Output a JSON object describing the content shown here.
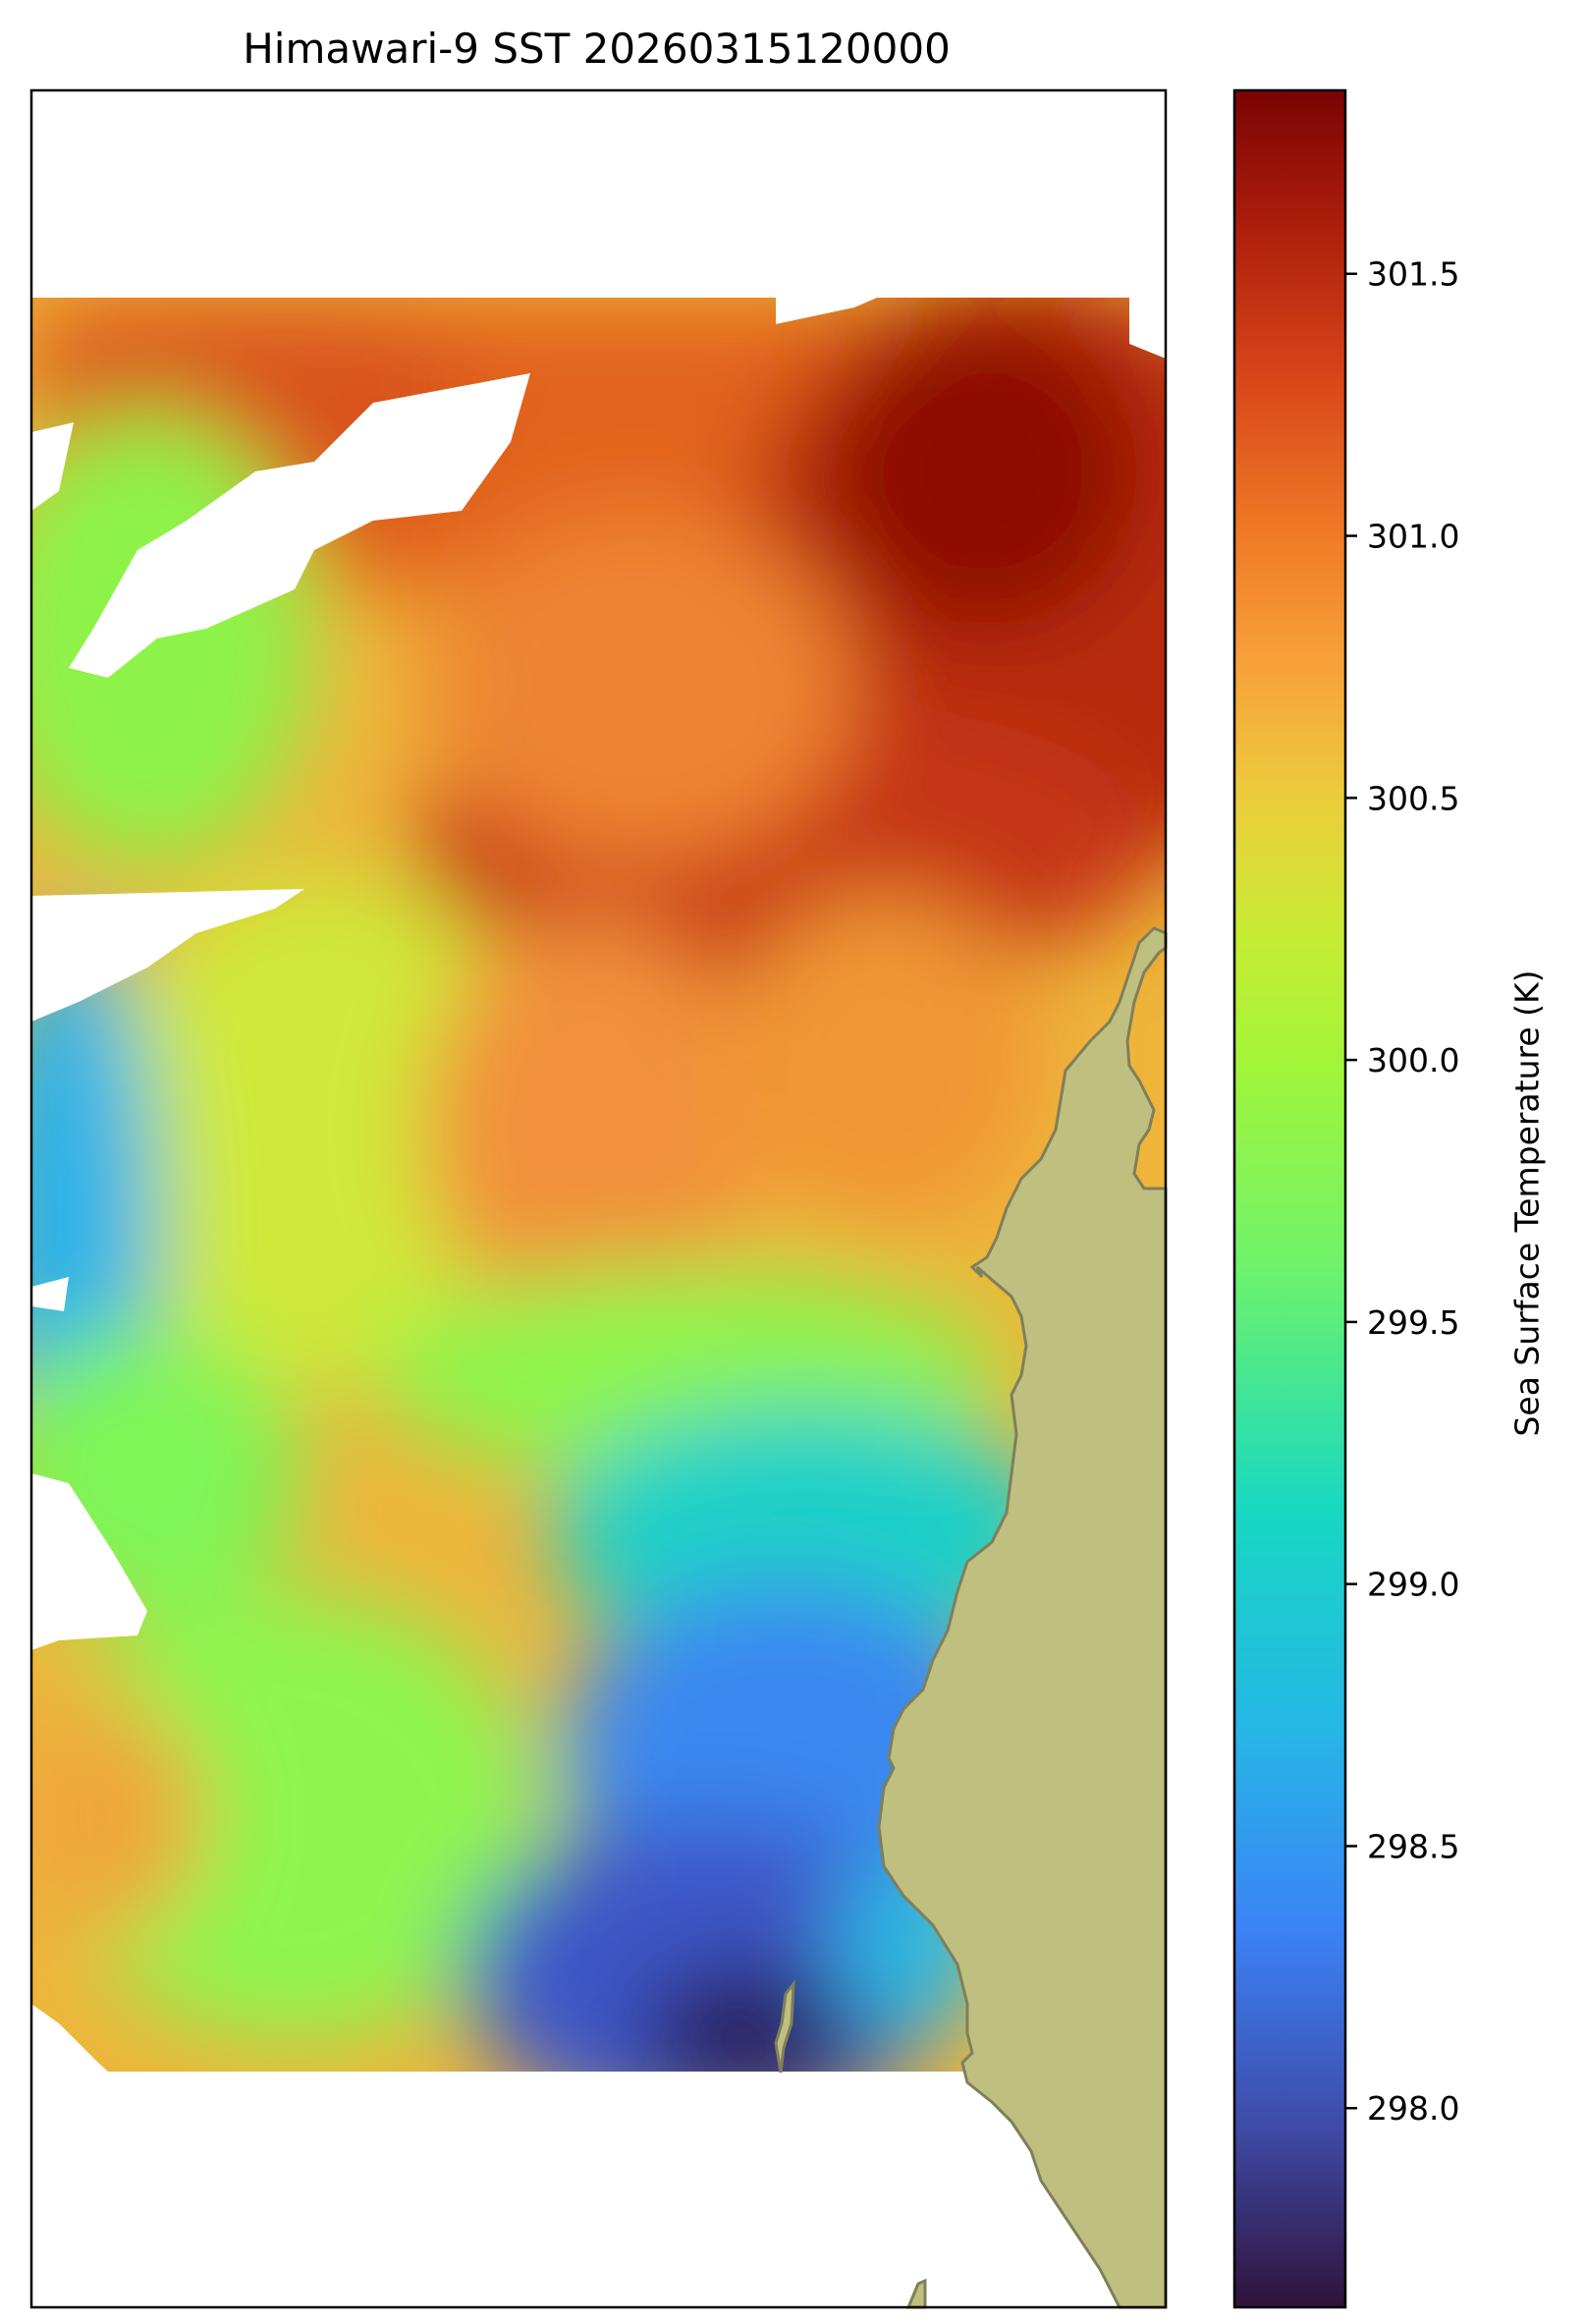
{
  "title": "Himawari-9 SST 20260315120000",
  "colorbar": {
    "label": "Sea Surface Temperature (K)",
    "min": 297.62,
    "max": 301.85,
    "ticks": [
      "301.5",
      "301.0",
      "300.5",
      "300.0",
      "299.5",
      "299.0",
      "298.5",
      "298.0"
    ]
  },
  "colors": {
    "land": "#bfbf80",
    "coastline": "#7f7f5b",
    "missing": "#ffffff",
    "colormap": "turbo"
  }
}
